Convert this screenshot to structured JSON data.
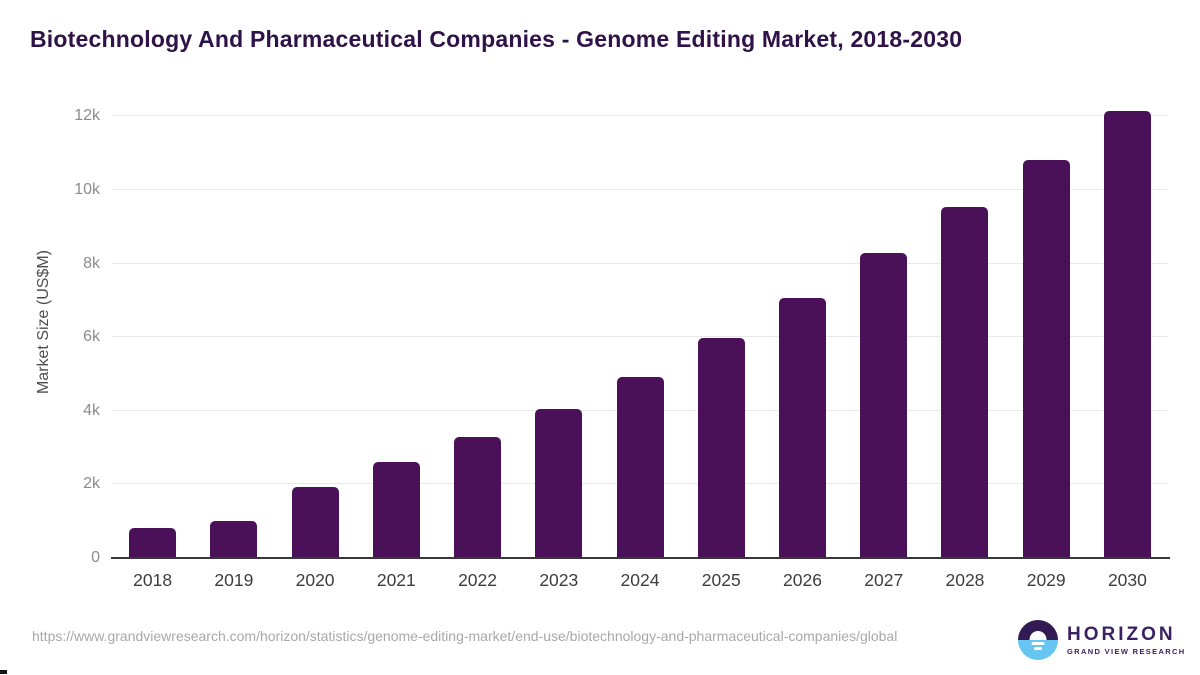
{
  "title": "Biotechnology And Pharmaceutical Companies - Genome Editing Market, 2018-2030",
  "chart_data": {
    "type": "bar",
    "title": "Biotechnology And Pharmaceutical Companies - Genome Editing Market, 2018-2030",
    "categories": [
      "2018",
      "2019",
      "2020",
      "2021",
      "2022",
      "2023",
      "2024",
      "2025",
      "2026",
      "2027",
      "2028",
      "2029",
      "2030"
    ],
    "values": [
      810,
      1010,
      1920,
      2610,
      3300,
      4040,
      4930,
      5970,
      7080,
      8280,
      9530,
      10830,
      12140
    ],
    "xlabel": "",
    "ylabel": "Market Size (US$M)",
    "ylim": [
      0,
      12600
    ],
    "yticks": {
      "values": [
        0,
        2000,
        4000,
        6000,
        8000,
        10000,
        12000
      ],
      "labels": [
        "0",
        "2k",
        "4k",
        "6k",
        "8k",
        "10k",
        "12k"
      ]
    },
    "grid": "horizontal-only",
    "legend": "none",
    "bar_color": "#4A1159",
    "gridline_color": "#e8e8e8",
    "axis_line_color": "#3a363c"
  },
  "footer": {
    "source_url": "https://www.grandviewresearch.com/horizon/statistics/genome-editing-market/end-use/biotechnology-and-pharmaceutical-companies/global",
    "logo": {
      "name": "HORIZON",
      "subtitle": "GRAND VIEW RESEARCH",
      "purple": "#321B52",
      "blue": "#66C5F1",
      "text_color": "#3B2163"
    }
  }
}
